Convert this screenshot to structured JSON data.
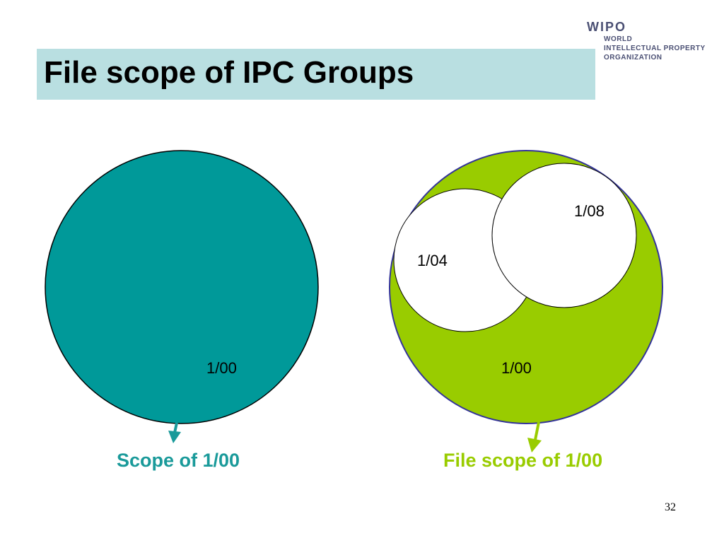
{
  "slide": {
    "title": "File scope of IPC Groups",
    "page_number": "32"
  },
  "logo": {
    "wipo": "WIPO",
    "line1": "WORLD",
    "line2": "INTELLECTUAL PROPERTY",
    "line3": "ORGANIZATION"
  },
  "diagram": {
    "left": {
      "circle_label": "1/00",
      "caption": "Scope of 1/00",
      "fill_color": "#009999"
    },
    "right": {
      "outer_label": "1/00",
      "inner_label_1": "1/04",
      "inner_label_2": "1/08",
      "caption": "File scope of 1/00",
      "fill_color": "#99cc00"
    }
  },
  "colors": {
    "title_bar": "#b9dfe1",
    "teal": "#009999",
    "green": "#99cc00",
    "logo_text": "#4a4f73"
  }
}
